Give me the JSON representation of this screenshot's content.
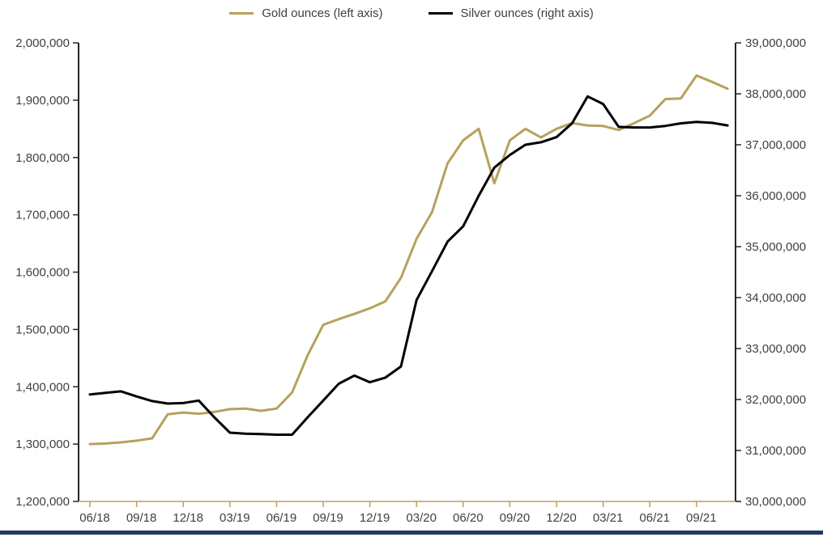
{
  "page": {
    "background": "#ffffff",
    "bottom_bar_color": "#1F3864",
    "text_color": "#404040",
    "axis_line_color": "#262626"
  },
  "legend": {
    "position": "top-center",
    "items": [
      {
        "label": "Gold ounces (left axis)",
        "color": "#B7A15C"
      },
      {
        "label": "Silver ounces (right axis)",
        "color": "#000000"
      }
    ]
  },
  "chart_data": {
    "type": "line",
    "title": "",
    "xlabel": "",
    "ylabel_left": "",
    "ylabel_right": "",
    "grid": false,
    "legend_position": "top-center",
    "x": [
      "06/18",
      "07/18",
      "08/18",
      "09/18",
      "10/18",
      "11/18",
      "12/18",
      "01/19",
      "02/19",
      "03/19",
      "04/19",
      "05/19",
      "06/19",
      "07/19",
      "08/19",
      "09/19",
      "10/19",
      "11/19",
      "12/19",
      "01/20",
      "02/20",
      "03/20",
      "04/20",
      "05/20",
      "06/20",
      "07/20",
      "08/20",
      "09/20",
      "10/20",
      "11/20",
      "12/20",
      "01/21",
      "02/21",
      "03/21",
      "04/21",
      "05/21",
      "06/21",
      "07/21",
      "08/21",
      "09/21",
      "10/21",
      "11/21"
    ],
    "x_tick_every": 3,
    "x_tick_labels": [
      "06/18",
      "09/18",
      "12/18",
      "03/19",
      "06/19",
      "09/19",
      "12/19",
      "03/20",
      "06/20",
      "09/20",
      "12/20",
      "03/21",
      "06/21",
      "09/21"
    ],
    "series": [
      {
        "name": "Gold ounces (left axis)",
        "axis": "left",
        "color": "#B7A15C",
        "values": [
          1300000,
          1301000,
          1303000,
          1306000,
          1310000,
          1352000,
          1355000,
          1353000,
          1356000,
          1361000,
          1362000,
          1358000,
          1362000,
          1390000,
          1455000,
          1508000,
          1518000,
          1527000,
          1537000,
          1549000,
          1590000,
          1658000,
          1705000,
          1790000,
          1830000,
          1850000,
          1755000,
          1830000,
          1850000,
          1835000,
          1850000,
          1860000,
          1856000,
          1855000,
          1848000,
          1860000,
          1873000,
          1902000,
          1903000,
          1943000,
          1932000,
          1920000
        ]
      },
      {
        "name": "Silver ounces (right axis)",
        "axis": "right",
        "color": "#000000",
        "values": [
          32100000,
          32130000,
          32160000,
          32060000,
          31970000,
          31920000,
          31930000,
          31980000,
          31650000,
          31350000,
          31330000,
          31320000,
          31310000,
          31310000,
          31650000,
          31980000,
          32310000,
          32470000,
          32340000,
          32430000,
          32650000,
          33950000,
          34520000,
          35100000,
          35400000,
          36000000,
          36550000,
          36800000,
          37000000,
          37050000,
          37150000,
          37420000,
          37950000,
          37800000,
          37350000,
          37340000,
          37340000,
          37370000,
          37420000,
          37450000,
          37430000,
          37380000
        ]
      }
    ],
    "left_axis": {
      "min": 1200000,
      "max": 2000000,
      "step": 100000,
      "tick_labels_top_down": [
        "2,000,000",
        "1,900,000",
        "1,800,000",
        "1,700,000",
        "1,600,000",
        "1,500,000",
        "1,400,000",
        "1,300,000",
        "1,200,000"
      ]
    },
    "right_axis": {
      "min": 30000000,
      "max": 39000000,
      "step": 1000000,
      "tick_labels_top_down": [
        "39,000,000",
        "38,000,000",
        "37,000,000",
        "36,000,000",
        "35,000,000",
        "34,000,000",
        "33,000,000",
        "32,000,000",
        "31,000,000",
        "30,000,000"
      ]
    }
  }
}
